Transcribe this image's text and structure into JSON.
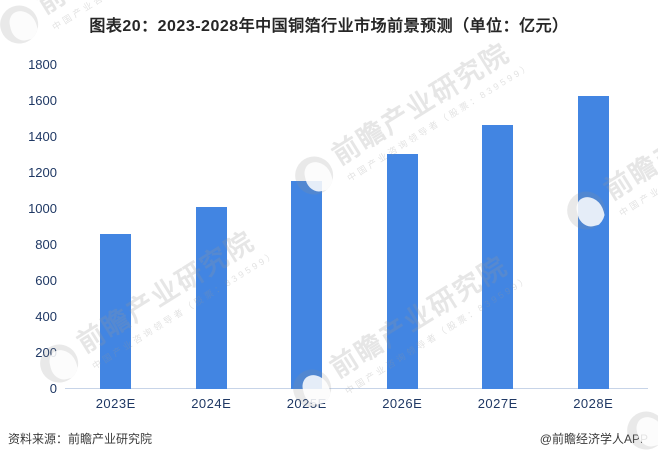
{
  "title": "图表20：2023-2028年中国铜箔行业市场前景预测（单位：亿元）",
  "chart_data": {
    "type": "bar",
    "title": "图表20：2023-2028年中国铜箔行业市场前景预测（单位：亿元）",
    "unit": "亿元",
    "categories": [
      "2023E",
      "2024E",
      "2025E",
      "2026E",
      "2027E",
      "2028E"
    ],
    "values": [
      860,
      1010,
      1155,
      1305,
      1465,
      1630
    ],
    "ylim": [
      0,
      1800
    ],
    "y_ticks": [
      0,
      200,
      400,
      600,
      800,
      1000,
      1200,
      1400,
      1600,
      1800
    ],
    "grid": false,
    "legend": "none",
    "bar_color": "#4285e2"
  },
  "colors": {
    "bar": "#4285e2",
    "axis_label": "#1f3864",
    "axis_line": "#c7d4e8",
    "title": "#262626",
    "footer": "#3a3a3a"
  },
  "watermark": {
    "brand": "前瞻产业研究院",
    "tagline": "中国产业咨询领导者（股票：839599）"
  },
  "footer": {
    "source": "资料来源：前瞻产业研究院",
    "credit": "@前瞻经济学人APP"
  }
}
